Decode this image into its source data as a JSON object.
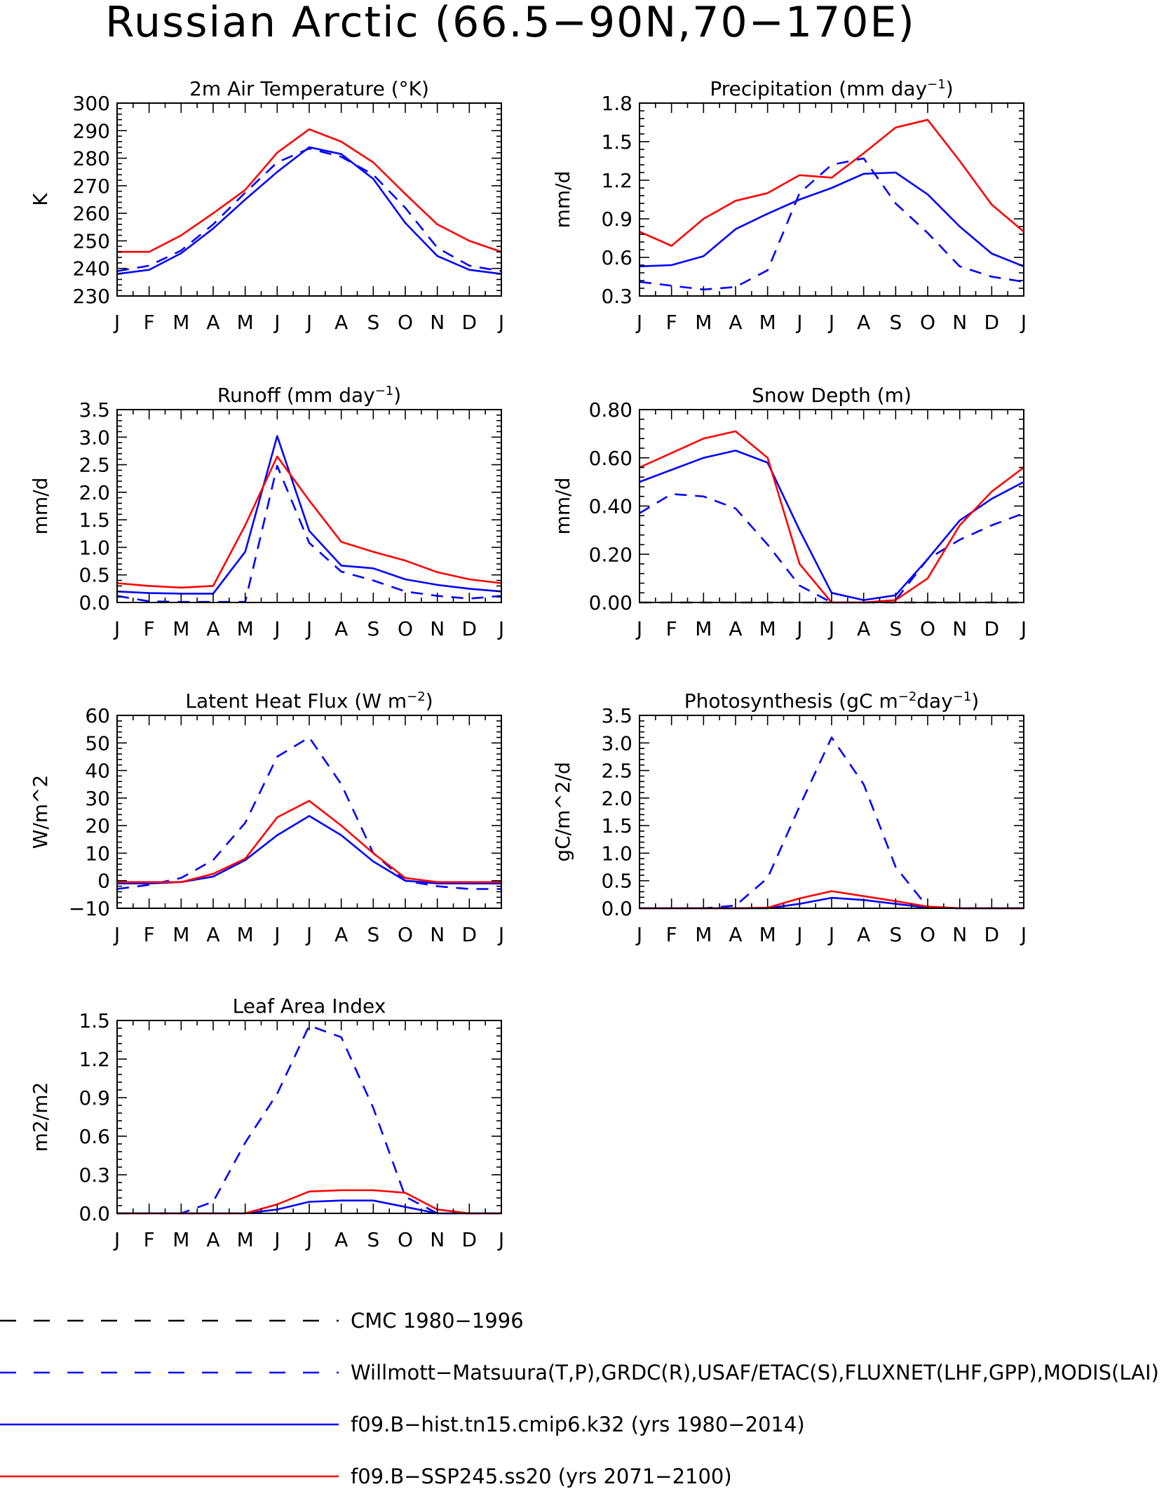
{
  "title": "Russian Arctic (66.5−90N,70−170E)",
  "months": [
    "J",
    "F",
    "M",
    "A",
    "M",
    "J",
    "J",
    "A",
    "S",
    "O",
    "N",
    "D",
    "J"
  ],
  "colors": {
    "obs_cmc": "#000000",
    "obs_other": "#0000ff",
    "hist": "#0000ff",
    "future": "#ff0000"
  },
  "legend": [
    {
      "label": "CMC 1980−1996",
      "style": "dashed",
      "color": "#000000"
    },
    {
      "label": "Willmott−Matsuura(T,P),GRDC(R),USAF/ETAC(S),FLUXNET(LHF,GPP),MODIS(LAI)",
      "style": "dashed",
      "color": "#0000ff"
    },
    {
      "label": "f09.B−hist.tn15.cmip6.k32 (yrs 1980−2014)",
      "style": "solid",
      "color": "#0000ff"
    },
    {
      "label": "f09.B−SSP245.ss20 (yrs 2071−2100)",
      "style": "solid",
      "color": "#ff0000"
    }
  ],
  "chart_data": [
    {
      "type": "line",
      "title": "2m Air Temperature (°K)",
      "title_parts": [
        {
          "t": "2m Air Temperature (°K)"
        }
      ],
      "ylabel": "K",
      "ylim": [
        230,
        300
      ],
      "yticks": [
        230,
        240,
        250,
        260,
        270,
        280,
        290,
        300
      ],
      "ytick_labels": [
        "230",
        "240",
        "250",
        "260",
        "270",
        "280",
        "290",
        "300"
      ],
      "ytick_minor": 2,
      "series": [
        {
          "style": "dashed",
          "color": "#0000ff",
          "values": [
            239,
            241,
            246.5,
            256,
            267.5,
            278.5,
            283.5,
            280.5,
            274,
            262,
            247.5,
            241,
            239
          ]
        },
        {
          "style": "solid",
          "color": "#0000ff",
          "values": [
            238,
            239.5,
            245.5,
            254.5,
            265,
            275,
            284,
            281.5,
            272.5,
            256.5,
            244.5,
            239.5,
            238
          ]
        },
        {
          "style": "solid",
          "color": "#ff0000",
          "values": [
            246,
            246,
            252,
            260,
            268.5,
            282,
            290.5,
            286,
            278.5,
            267,
            256,
            250,
            246
          ]
        }
      ]
    },
    {
      "type": "line",
      "title": "Precipitation (mm day⁻¹)",
      "title_parts": [
        {
          "t": "Precipitation (mm day"
        },
        {
          "t": "−1",
          "sup": true
        },
        {
          "t": ")"
        }
      ],
      "ylabel": "mm/d",
      "ylim": [
        0.3,
        1.8
      ],
      "yticks": [
        0.3,
        0.6,
        0.9,
        1.2,
        1.5,
        1.8
      ],
      "ytick_labels": [
        "0.3",
        "0.6",
        "0.9",
        "1.2",
        "1.5",
        "1.8"
      ],
      "ytick_minor": 0.06,
      "series": [
        {
          "style": "dashed",
          "color": "#0000ff",
          "values": [
            0.41,
            0.38,
            0.35,
            0.37,
            0.5,
            1.1,
            1.32,
            1.37,
            1.02,
            0.79,
            0.53,
            0.45,
            0.41
          ]
        },
        {
          "style": "solid",
          "color": "#0000ff",
          "values": [
            0.53,
            0.54,
            0.61,
            0.82,
            0.94,
            1.05,
            1.14,
            1.25,
            1.26,
            1.09,
            0.84,
            0.63,
            0.53
          ]
        },
        {
          "style": "solid",
          "color": "#ff0000",
          "values": [
            0.8,
            0.69,
            0.9,
            1.04,
            1.1,
            1.24,
            1.22,
            1.41,
            1.61,
            1.67,
            1.35,
            1.01,
            0.8
          ]
        }
      ]
    },
    {
      "type": "line",
      "title": "Runoff (mm day⁻¹)",
      "title_parts": [
        {
          "t": "Runoff (mm day"
        },
        {
          "t": "−1",
          "sup": true
        },
        {
          "t": ")"
        }
      ],
      "ylabel": "mm/d",
      "ylim": [
        0,
        3.5
      ],
      "yticks": [
        0,
        0.5,
        1,
        1.5,
        2,
        2.5,
        3,
        3.5
      ],
      "ytick_labels": [
        "0.0",
        "0.5",
        "1.0",
        "1.5",
        "2.0",
        "2.5",
        "3.0",
        "3.5"
      ],
      "ytick_minor": 0.1,
      "series": [
        {
          "style": "dashed",
          "color": "#0000ff",
          "values": [
            0.12,
            0.02,
            0.01,
            0.01,
            0.01,
            2.48,
            1.08,
            0.56,
            0.4,
            0.2,
            0.12,
            0.07,
            0.12
          ]
        },
        {
          "style": "solid",
          "color": "#0000ff",
          "values": [
            0.2,
            0.17,
            0.16,
            0.16,
            0.92,
            3.02,
            1.3,
            0.67,
            0.62,
            0.42,
            0.32,
            0.25,
            0.2
          ]
        },
        {
          "style": "solid",
          "color": "#ff0000",
          "values": [
            0.35,
            0.3,
            0.27,
            0.3,
            1.4,
            2.65,
            1.85,
            1.1,
            0.92,
            0.76,
            0.55,
            0.42,
            0.35
          ]
        }
      ]
    },
    {
      "type": "line",
      "title": "Snow Depth (m)",
      "title_parts": [
        {
          "t": "Snow Depth (m)"
        }
      ],
      "ylabel": "mm/d",
      "ylim": [
        0,
        0.8
      ],
      "yticks": [
        0,
        0.2,
        0.4,
        0.6,
        0.8
      ],
      "ytick_labels": [
        "0.00",
        "0.20",
        "0.40",
        "0.60",
        "0.80"
      ],
      "ytick_minor": 0.04,
      "series": [
        {
          "style": "dashed",
          "color": "#000000",
          "values": [
            0,
            0,
            0,
            0,
            0,
            0,
            0,
            0,
            0,
            0,
            0,
            0,
            0
          ]
        },
        {
          "style": "dashed",
          "color": "#0000ff",
          "values": [
            0.37,
            0.45,
            0.44,
            0.39,
            0.24,
            0.07,
            0,
            0,
            0.01,
            0.18,
            0.26,
            0.32,
            0.37
          ]
        },
        {
          "style": "solid",
          "color": "#0000ff",
          "values": [
            0.5,
            0.55,
            0.6,
            0.63,
            0.58,
            0.3,
            0.04,
            0.01,
            0.03,
            0.18,
            0.34,
            0.43,
            0.5
          ]
        },
        {
          "style": "solid",
          "color": "#ff0000",
          "values": [
            0.56,
            0.62,
            0.68,
            0.71,
            0.6,
            0.16,
            0,
            0,
            0.01,
            0.1,
            0.32,
            0.46,
            0.56
          ]
        }
      ]
    },
    {
      "type": "line",
      "title": "Latent Heat Flux (W m⁻²)",
      "title_parts": [
        {
          "t": "Latent Heat Flux (W m"
        },
        {
          "t": "−2",
          "sup": true
        },
        {
          "t": ")"
        }
      ],
      "ylabel": "W/m^2",
      "ylim": [
        -10,
        60
      ],
      "yticks": [
        -10,
        0,
        10,
        20,
        30,
        40,
        50,
        60
      ],
      "ytick_labels": [
        "−10",
        "0",
        "10",
        "20",
        "30",
        "40",
        "50",
        "60"
      ],
      "ytick_minor": 2,
      "series": [
        {
          "style": "dashed",
          "color": "#0000ff",
          "values": [
            -3,
            -1.5,
            1,
            7.5,
            21,
            45,
            52,
            35,
            10,
            0,
            -2,
            -3,
            -3
          ]
        },
        {
          "style": "solid",
          "color": "#0000ff",
          "values": [
            -1,
            -1,
            -0.5,
            1.5,
            7.5,
            16.5,
            23.5,
            16.5,
            7,
            0,
            -1,
            -1,
            -1
          ]
        },
        {
          "style": "solid",
          "color": "#ff0000",
          "values": [
            -0.5,
            -0.5,
            -0.5,
            2.5,
            8,
            23,
            29,
            20,
            10,
            1,
            -0.5,
            -0.5,
            -0.5
          ]
        }
      ]
    },
    {
      "type": "line",
      "title": "Photosynthesis (gC m⁻²day⁻¹)",
      "title_parts": [
        {
          "t": "Photosynthesis (gC m"
        },
        {
          "t": "−2",
          "sup": true
        },
        {
          "t": "day"
        },
        {
          "t": "−1",
          "sup": true
        },
        {
          "t": ")"
        }
      ],
      "ylabel": "gC/m^2/d",
      "ylim": [
        0,
        3.5
      ],
      "yticks": [
        0,
        0.5,
        1,
        1.5,
        2,
        2.5,
        3,
        3.5
      ],
      "ytick_labels": [
        "0.0",
        "0.5",
        "1.0",
        "1.5",
        "2.0",
        "2.5",
        "3.0",
        "3.5"
      ],
      "ytick_minor": 0.1,
      "series": [
        {
          "style": "dashed",
          "color": "#0000ff",
          "values": [
            0,
            0,
            0,
            0.05,
            0.55,
            1.85,
            3.1,
            2.25,
            0.75,
            0.02,
            0,
            0,
            0
          ]
        },
        {
          "style": "solid",
          "color": "#0000ff",
          "values": [
            0,
            0,
            0,
            0,
            0,
            0.08,
            0.19,
            0.15,
            0.08,
            0.01,
            0,
            0,
            0
          ]
        },
        {
          "style": "solid",
          "color": "#ff0000",
          "values": [
            0,
            0,
            0,
            0,
            0.01,
            0.18,
            0.31,
            0.22,
            0.13,
            0.03,
            0,
            0,
            0
          ]
        }
      ]
    },
    {
      "type": "line",
      "title": "Leaf Area Index",
      "title_parts": [
        {
          "t": "Leaf Area Index"
        }
      ],
      "ylabel": "m2/m2",
      "ylim": [
        0,
        1.5
      ],
      "yticks": [
        0,
        0.3,
        0.6,
        0.9,
        1.2,
        1.5
      ],
      "ytick_labels": [
        "0.0",
        "0.3",
        "0.6",
        "0.9",
        "1.2",
        "1.5"
      ],
      "ytick_minor": 0.06,
      "series": [
        {
          "style": "dashed",
          "color": "#0000ff",
          "values": [
            0,
            0,
            0,
            0.09,
            0.55,
            0.93,
            1.46,
            1.37,
            0.82,
            0.13,
            0,
            0,
            0
          ]
        },
        {
          "style": "solid",
          "color": "#0000ff",
          "values": [
            0,
            0,
            0,
            0,
            0,
            0.03,
            0.09,
            0.1,
            0.1,
            0.05,
            0,
            0,
            0
          ]
        },
        {
          "style": "solid",
          "color": "#ff0000",
          "values": [
            0,
            0,
            0,
            0,
            0,
            0.07,
            0.17,
            0.18,
            0.18,
            0.16,
            0.03,
            0,
            0
          ]
        }
      ]
    }
  ]
}
